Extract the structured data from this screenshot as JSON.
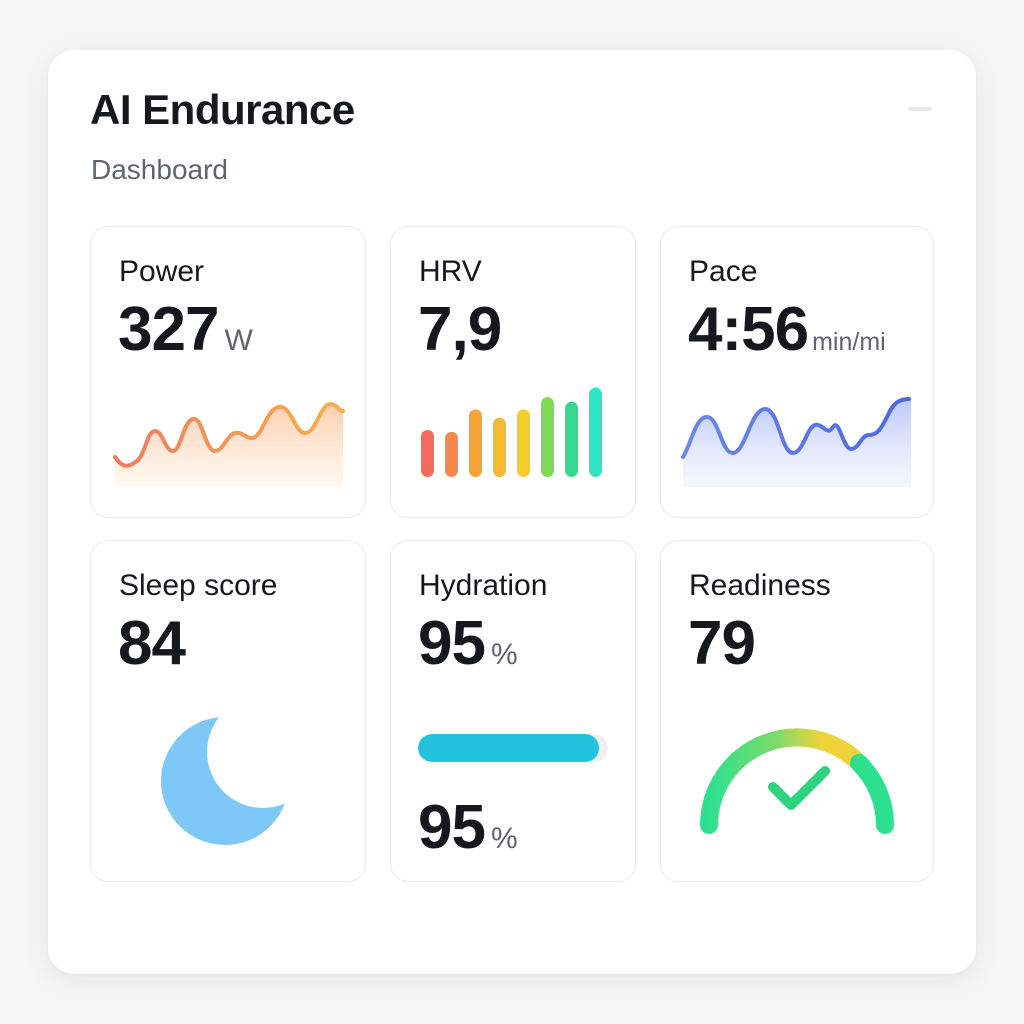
{
  "app": {
    "title": "AI Endurance",
    "subtitle": "Dashboard"
  },
  "cards": {
    "power": {
      "label": "Power",
      "value": "327",
      "unit": "W",
      "icon": "area-sparkline-icon",
      "colors": [
        "#f27b62",
        "#f6b04a"
      ]
    },
    "hrv": {
      "label": "HRV",
      "value": "7,9",
      "icon": "bar-sparkline-icon",
      "bar_levels": [
        0.5,
        0.48,
        0.72,
        0.63,
        0.72,
        0.85,
        0.8,
        0.95
      ],
      "bar_colors": [
        "#f26b5b",
        "#f4894f",
        "#f6a43a",
        "#f6b932",
        "#f3cd2c",
        "#7ed957",
        "#34d98f",
        "#2ee4c4"
      ]
    },
    "pace": {
      "label": "Pace",
      "value": "4:56",
      "unit": "min/mi",
      "icon": "area-sparkline-icon",
      "colors": [
        "#5b74e8",
        "#a9b8f7"
      ]
    },
    "sleep": {
      "label": "Sleep score",
      "value": "84",
      "icon": "moon-icon",
      "color": "#7ec8f8"
    },
    "hydration": {
      "label": "Hydration",
      "value": "95",
      "unit": "%",
      "progress": 0.95,
      "bottom_value": "95",
      "bottom_unit": "%",
      "color": "#22c3dc"
    },
    "readiness": {
      "label": "Readiness",
      "value": "79",
      "icon": "checkmark-icon",
      "gauge_colors": [
        "#2de08f",
        "#a6dc4a",
        "#f0d23b"
      ],
      "check_color": "#2fd27f"
    }
  }
}
